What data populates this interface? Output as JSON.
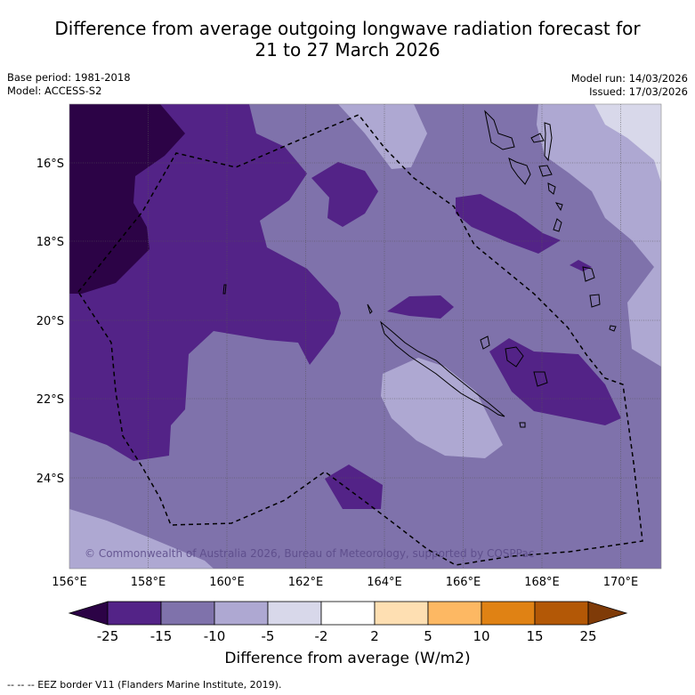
{
  "header": {
    "title_line1": "Difference from average outgoing longwave radiation forecast for",
    "title_line2": "21 to 27 March 2026",
    "base_period": "Base period: 1981-2018",
    "model": "Model: ACCESS-S2",
    "model_run": "Model run: 14/03/2026",
    "issued": "Issued: 17/03/2026"
  },
  "map": {
    "longitude_labels": [
      "156°E",
      "158°E",
      "160°E",
      "162°E",
      "164°E",
      "166°E",
      "168°E",
      "170°E"
    ],
    "latitude_labels": [
      "16°S",
      "18°S",
      "20°S",
      "22°S",
      "24°S"
    ],
    "copyright": "© Commonwealth of Australia 2026, Bureau of Meteorology, supported by COSPPac"
  },
  "colorbar": {
    "title": "Difference from average (W/m2)",
    "tick_labels": [
      "-25",
      "-15",
      "-10",
      "-5",
      "-2",
      "2",
      "5",
      "10",
      "15",
      "25"
    ],
    "colors": [
      "#2c0346",
      "#532387",
      "#7f72ab",
      "#aea8d2",
      "#d8d8ea",
      "#ffffff",
      "#fedfb2",
      "#fdb863",
      "#e08214",
      "#b35806",
      "#7f3b08"
    ]
  },
  "legend": {
    "eez_text": "--  --  -- EEZ border V11 (Flanders Marine Institute, 2019)."
  }
}
